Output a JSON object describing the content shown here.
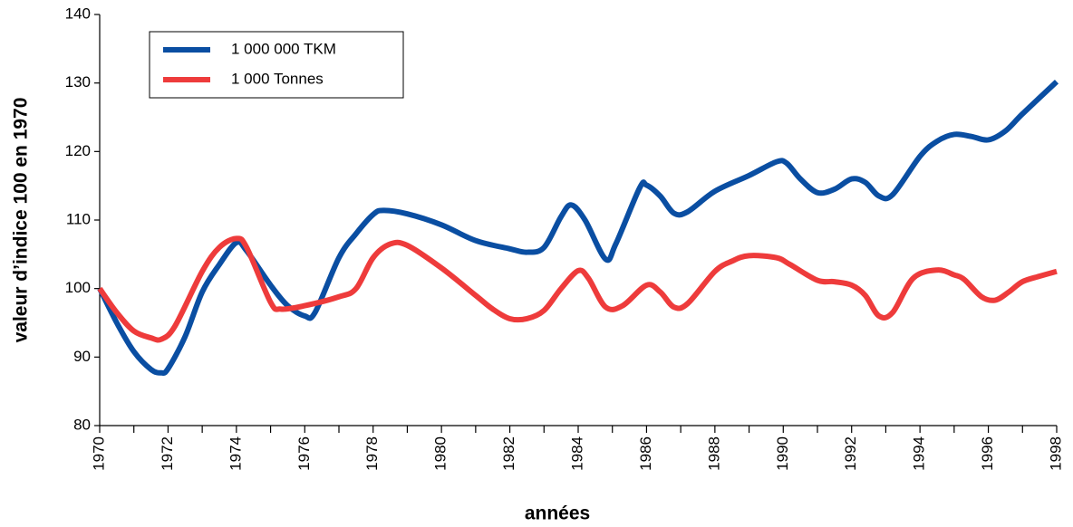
{
  "chart_data": {
    "type": "line",
    "xlabel": "années",
    "ylabel": "valeur d’indice 100 en 1970",
    "xlim": [
      1970,
      1998
    ],
    "xticks": [
      1970,
      1972,
      1974,
      1976,
      1978,
      1980,
      1982,
      1984,
      1986,
      1988,
      1990,
      1992,
      1994,
      1996,
      1998
    ],
    "xminorticks": [
      1971,
      1973,
      1975,
      1977,
      1979,
      1981,
      1983,
      1985,
      1987,
      1989,
      1991,
      1993,
      1995,
      1997
    ],
    "ylim": [
      80,
      140
    ],
    "yticks": [
      80,
      90,
      100,
      110,
      120,
      130,
      140
    ],
    "legend": "upper left",
    "series": [
      {
        "name": "1 000 000 TKM",
        "color": "#0a4ea2",
        "x": [
          1970,
          1970.5,
          1971,
          1971.5,
          1971.8,
          1972,
          1972.5,
          1973,
          1973.5,
          1974,
          1974.3,
          1975,
          1975.5,
          1976,
          1976.3,
          1977,
          1977.5,
          1978,
          1978.3,
          1979,
          1980,
          1981,
          1982,
          1982.5,
          1983,
          1983.5,
          1983.8,
          1984.2,
          1984.8,
          1985.1,
          1985.8,
          1986,
          1986.4,
          1986.8,
          1987.2,
          1988,
          1989,
          1989.8,
          1990.1,
          1990.5,
          1991,
          1991.5,
          1992,
          1992.4,
          1992.8,
          1993.2,
          1994,
          1994.5,
          1995,
          1995.5,
          1996,
          1996.5,
          1997,
          1998
        ],
        "values": [
          100,
          95,
          90.8,
          88.2,
          87.7,
          88.3,
          93,
          99.5,
          103.5,
          106.7,
          105.5,
          100.5,
          97.5,
          96,
          96.5,
          104.5,
          108,
          110.8,
          111.4,
          110.9,
          109.3,
          107,
          105.8,
          105.3,
          106,
          110.5,
          112.2,
          110,
          104.3,
          106.5,
          114.7,
          115.1,
          113.5,
          111,
          111.2,
          114.2,
          116.5,
          118.5,
          118.3,
          116,
          114,
          114.5,
          116,
          115.5,
          113.5,
          113.7,
          119.3,
          121.5,
          122.5,
          122.2,
          121.7,
          123,
          125.5,
          130.2
        ]
      },
      {
        "name": "1 000 Tonnes",
        "color": "#ee3b3b",
        "x": [
          1970,
          1970.5,
          1971,
          1971.5,
          1971.8,
          1972.2,
          1973,
          1973.5,
          1974,
          1974.3,
          1975,
          1975.3,
          1976,
          1977,
          1977.5,
          1978,
          1978.5,
          1979,
          1980,
          1981,
          1981.5,
          1982,
          1982.5,
          1983,
          1983.5,
          1984,
          1984.3,
          1984.8,
          1985.3,
          1986,
          1986.4,
          1986.8,
          1987.2,
          1988,
          1988.5,
          1989,
          1989.8,
          1990.2,
          1991,
          1991.5,
          1992,
          1992.4,
          1992.8,
          1993.2,
          1993.8,
          1994.5,
          1995,
          1995.3,
          1995.8,
          1996.2,
          1996.6,
          1997,
          1997.5,
          1998
        ],
        "values": [
          100,
          96.5,
          93.8,
          92.8,
          92.6,
          94.5,
          102.5,
          106,
          107.3,
          106,
          98,
          97,
          97.5,
          98.8,
          100,
          104.5,
          106.5,
          106.3,
          103,
          99,
          97,
          95.6,
          95.6,
          96.8,
          100,
          102.6,
          101.5,
          97.3,
          97.5,
          100.5,
          99.5,
          97.3,
          97.8,
          102.5,
          104,
          104.8,
          104.5,
          103.5,
          101.2,
          101,
          100.5,
          99,
          96,
          96.5,
          101.5,
          102.7,
          102,
          101.3,
          98.8,
          98.3,
          99.5,
          101,
          101.8,
          102.5
        ]
      }
    ]
  }
}
